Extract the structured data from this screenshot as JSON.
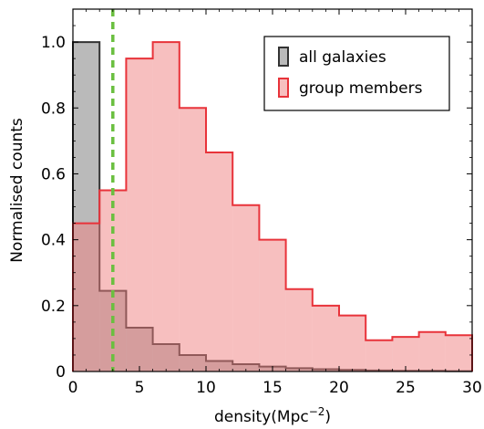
{
  "chart_data": {
    "type": "histogram",
    "xlabel": "density(Mpc$^{-2}$)",
    "xlabel_parts": {
      "base": "density(Mpc",
      "sup": "−2",
      "close": ")"
    },
    "ylabel": "Normalised counts",
    "xlim": [
      0,
      30
    ],
    "ylim": [
      0,
      1.1
    ],
    "bin_edges": [
      0,
      2,
      4,
      6,
      8,
      10,
      12,
      14,
      16,
      18,
      20,
      22,
      24,
      26,
      28,
      30
    ],
    "x_ticks": [
      0,
      5,
      10,
      15,
      20,
      25,
      30
    ],
    "x_tick_labels": [
      "0",
      "5",
      "10",
      "15",
      "20",
      "25",
      "30"
    ],
    "y_ticks": [
      0,
      0.2,
      0.4,
      0.6,
      0.8,
      1.0
    ],
    "y_tick_labels": [
      "0",
      "0.2",
      "0.4",
      "0.6",
      "0.8",
      "1.0"
    ],
    "series": [
      {
        "name": "all galaxies",
        "fill": "#8c8c8c",
        "edge": "#333333",
        "fill_opacity": 0.6,
        "values": [
          1.0,
          0.245,
          0.133,
          0.083,
          0.05,
          0.032,
          0.022,
          0.015,
          0.01,
          0.007,
          0.005,
          0.003,
          0.002,
          0.002,
          0.001
        ]
      },
      {
        "name": "group members",
        "fill": "#f07f7f",
        "edge": "#e8333a",
        "fill_opacity": 0.5,
        "values": [
          0.45,
          0.55,
          0.95,
          1.0,
          0.8,
          0.665,
          0.505,
          0.4,
          0.25,
          0.2,
          0.17,
          0.095,
          0.105,
          0.12,
          0.11
        ]
      }
    ],
    "reference_line": {
      "x": 3.0,
      "color": "#6abf3f",
      "style": "dashed"
    },
    "legend": {
      "position": "top-right"
    },
    "grid": false
  }
}
